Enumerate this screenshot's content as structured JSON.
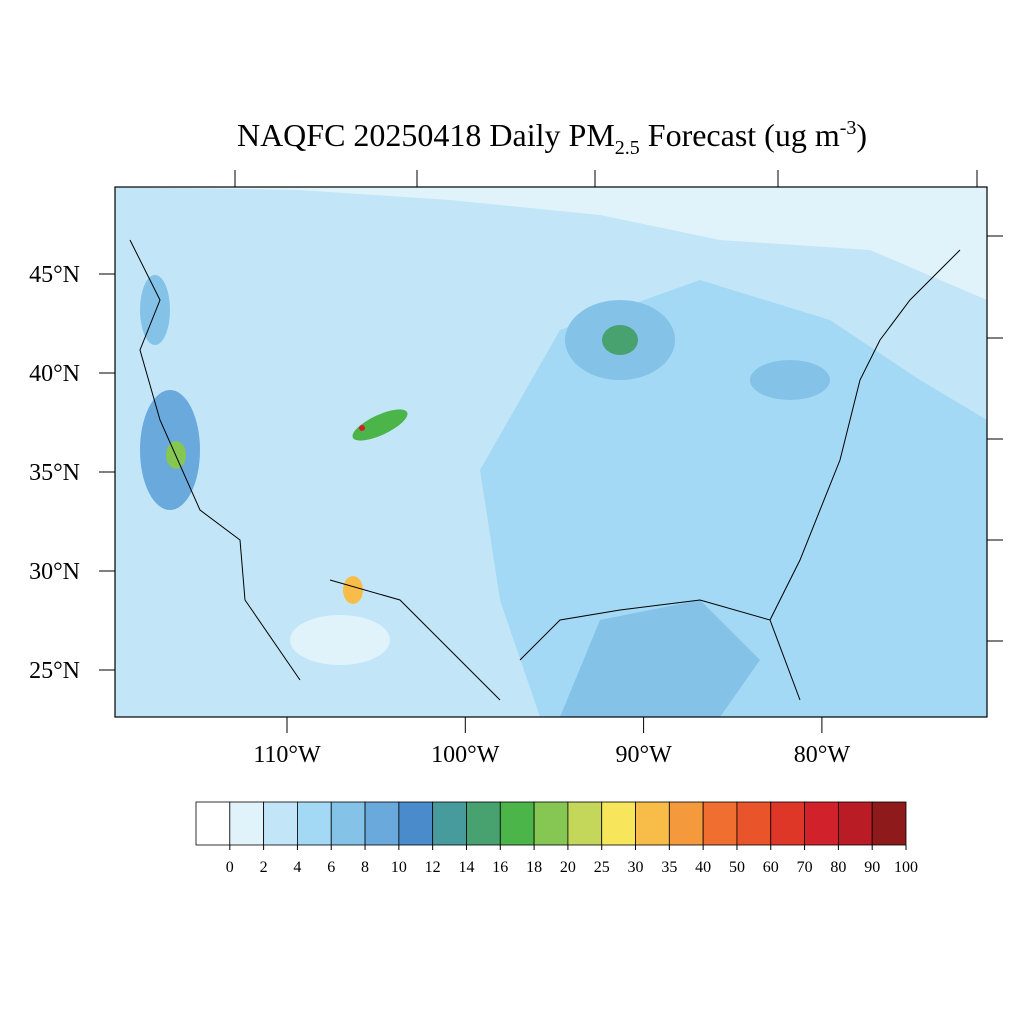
{
  "title": {
    "main": "NAQFC 20250418 Daily PM",
    "sub": "2.5",
    "rest": " Forecast (ug m",
    "sup": "-3",
    "close": ")"
  },
  "map": {
    "lat_ticks": [
      {
        "value": 45,
        "label": "45°N"
      },
      {
        "value": 40,
        "label": "40°N"
      },
      {
        "value": 35,
        "label": "35°N"
      },
      {
        "value": 30,
        "label": "30°N"
      },
      {
        "value": 25,
        "label": "25°N"
      }
    ],
    "lon_ticks": [
      {
        "value": -110,
        "label": "110°W"
      },
      {
        "value": -100,
        "label": "100°W"
      },
      {
        "value": -90,
        "label": "90°W"
      },
      {
        "value": -80,
        "label": "80°W"
      }
    ]
  },
  "colorbar": {
    "levels": [
      0,
      2,
      4,
      6,
      8,
      10,
      12,
      14,
      16,
      18,
      20,
      25,
      30,
      35,
      40,
      50,
      60,
      70,
      80,
      90,
      100
    ],
    "colors": [
      "#ffffff",
      "#e0f3fb",
      "#c2e6f7",
      "#a3d9f4",
      "#84c2e8",
      "#69a9dc",
      "#4a8ccb",
      "#479b9d",
      "#48a26f",
      "#4cb549",
      "#86c652",
      "#c5d75a",
      "#f7e65b",
      "#f8bd49",
      "#f59a3c",
      "#f06e2f",
      "#e9542b",
      "#df3727",
      "#d1222b",
      "#b91c24",
      "#8e1a1b"
    ]
  }
}
